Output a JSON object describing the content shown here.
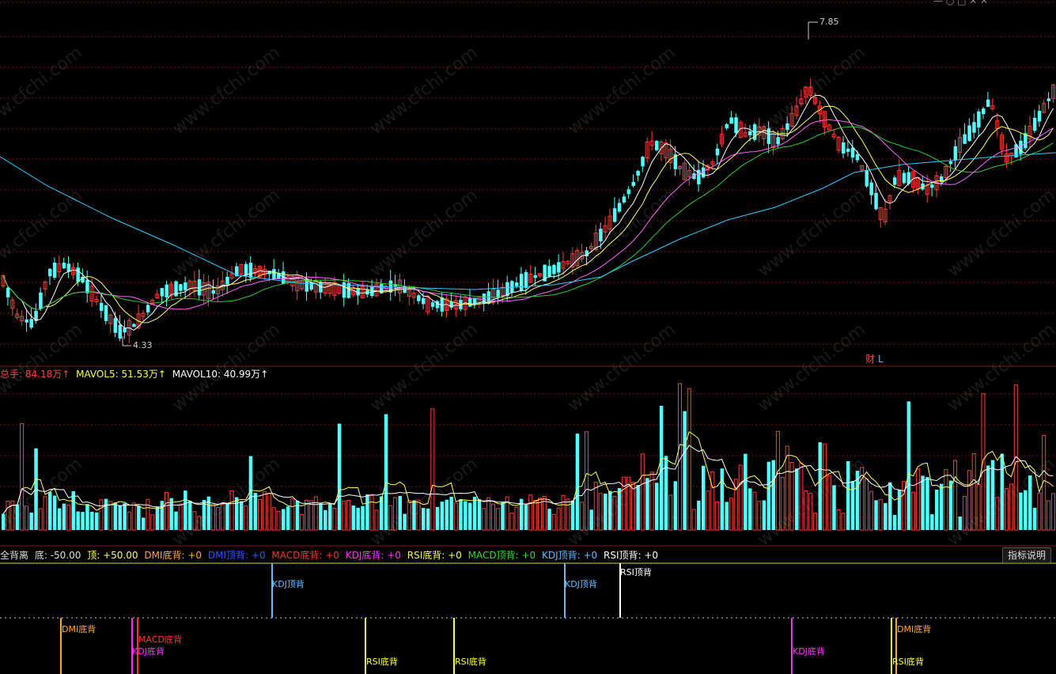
{
  "colors": {
    "up": "#ff3b3b",
    "down": "#54ffff",
    "grid": "#7a1010",
    "ma5": "#ffffff",
    "ma10": "#ffff66",
    "ma20": "#ff66ff",
    "ma30": "#33cc33",
    "ma60": "#33ccff"
  },
  "price_panel": {
    "high_label": "7.85",
    "low_label": "4.33",
    "marker_cai": "财",
    "marker_l": "L"
  },
  "volume_panel": {
    "total_label": "总手: 84.18万",
    "total_color": "#ff4444",
    "mavol5_label": "MAVOL5: 51.53万",
    "mavol5_color": "#ffff55",
    "mavol10_label": "MAVOL10: 40.99万",
    "mavol10_color": "#ffffff",
    "arrow": "↑"
  },
  "indicator_panel": {
    "title": "全背离",
    "bottom_label": "底: -50.00",
    "top_label": "顶: +50.00",
    "items": [
      {
        "label": "DMI底背: +0",
        "color": "#ffaa33"
      },
      {
        "label": "DMI顶背: +0",
        "color": "#3355ff"
      },
      {
        "label": "MACD底背: +0",
        "color": "#ff3333"
      },
      {
        "label": "KDJ底背: +0",
        "color": "#ff33ff"
      },
      {
        "label": "RSI底背: +0",
        "color": "#ffff44"
      },
      {
        "label": "MACD顶背: +0",
        "color": "#33dd33"
      },
      {
        "label": "KDJ顶背: +0",
        "color": "#66bbff"
      },
      {
        "label": "RSI顶背: +0",
        "color": "#ffffff"
      }
    ],
    "button_label": "指标说明",
    "signals": [
      {
        "label": "KDJ顶背",
        "color": "#66bbff"
      },
      {
        "label": "KDJ顶背",
        "color": "#66bbff"
      },
      {
        "label": "RSI顶背",
        "color": "#ffffff"
      },
      {
        "label": "DMI底背",
        "color": "#ffaa33"
      },
      {
        "label": "MACD底背",
        "color": "#ff3333"
      },
      {
        "label": "KDJ底背",
        "color": "#ff33ff"
      },
      {
        "label": "RSI底背",
        "color": "#ffff44"
      },
      {
        "label": "RSI底背",
        "color": "#ffff44"
      },
      {
        "label": "KDJ底背",
        "color": "#ff33ff"
      },
      {
        "label": "DMI底背",
        "color": "#ffaa33"
      },
      {
        "label": "RSI底背",
        "color": "#ffff44"
      }
    ]
  },
  "watermark": "www.cfchi.com"
}
